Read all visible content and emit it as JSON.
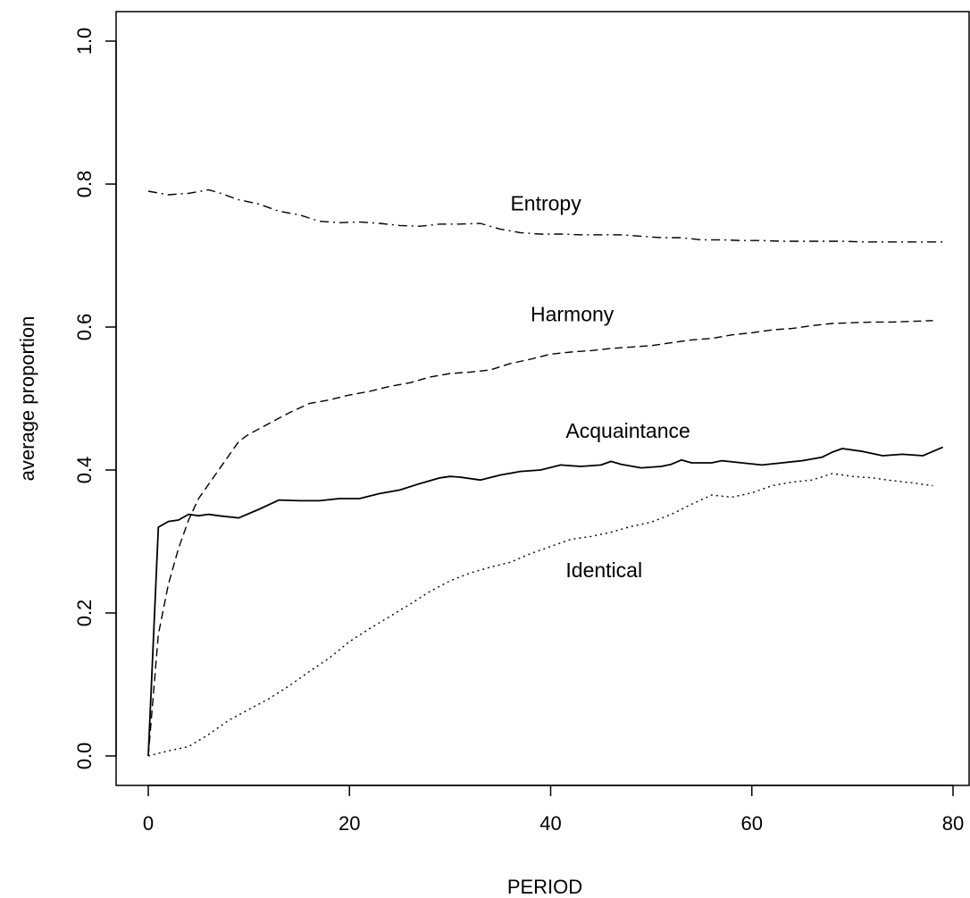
{
  "chart_data": {
    "type": "line",
    "title": "",
    "xlabel": "PERIOD",
    "ylabel": "average proportion",
    "xlim": [
      0,
      80
    ],
    "ylim": [
      0,
      1.0
    ],
    "xticks": [
      "0",
      "20",
      "40",
      "60",
      "80"
    ],
    "yticks": [
      "0.0",
      "0.2",
      "0.4",
      "0.6",
      "0.8",
      "1.0"
    ],
    "grid": false,
    "legend": "none",
    "series": [
      {
        "name": "Entropy",
        "linestyle": "dashdot",
        "x": [
          0,
          2,
          4,
          6,
          7,
          9,
          11,
          13,
          15,
          17,
          19,
          21,
          23,
          25,
          27,
          29,
          31,
          33,
          35,
          37,
          39,
          41,
          43,
          45,
          47,
          49,
          51,
          53,
          55,
          57,
          59,
          61,
          63,
          65,
          67,
          69,
          71,
          73,
          75,
          77,
          79
        ],
        "values": [
          0.79,
          0.785,
          0.787,
          0.792,
          0.788,
          0.778,
          0.772,
          0.762,
          0.757,
          0.748,
          0.746,
          0.747,
          0.745,
          0.742,
          0.741,
          0.744,
          0.744,
          0.745,
          0.737,
          0.732,
          0.73,
          0.73,
          0.729,
          0.729,
          0.729,
          0.727,
          0.725,
          0.725,
          0.722,
          0.722,
          0.721,
          0.721,
          0.72,
          0.72,
          0.72,
          0.72,
          0.719,
          0.719,
          0.719,
          0.719,
          0.719
        ]
      },
      {
        "name": "Harmony",
        "linestyle": "dashed",
        "x": [
          0,
          1,
          2,
          3,
          4,
          5,
          6,
          7,
          8,
          9,
          10,
          12,
          14,
          16,
          18,
          20,
          22,
          24,
          26,
          28,
          30,
          32,
          34,
          36,
          38,
          40,
          42,
          44,
          46,
          48,
          50,
          52,
          54,
          56,
          58,
          60,
          62,
          64,
          66,
          68,
          70,
          72,
          74,
          76,
          78
        ],
        "values": [
          0.0,
          0.17,
          0.24,
          0.29,
          0.33,
          0.36,
          0.38,
          0.4,
          0.42,
          0.44,
          0.45,
          0.465,
          0.48,
          0.493,
          0.498,
          0.505,
          0.51,
          0.517,
          0.522,
          0.53,
          0.535,
          0.537,
          0.54,
          0.549,
          0.555,
          0.562,
          0.565,
          0.567,
          0.57,
          0.572,
          0.574,
          0.578,
          0.582,
          0.584,
          0.589,
          0.592,
          0.596,
          0.598,
          0.602,
          0.605,
          0.606,
          0.607,
          0.607,
          0.608,
          0.609
        ]
      },
      {
        "name": "Acquaintance",
        "linestyle": "solid",
        "x": [
          0,
          1,
          2,
          3,
          4,
          5,
          6,
          7,
          9,
          11,
          13,
          15,
          17,
          19,
          21,
          23,
          25,
          27,
          29,
          30,
          31,
          33,
          35,
          37,
          39,
          41,
          43,
          45,
          46,
          47,
          49,
          51,
          52,
          53,
          54,
          56,
          57,
          59,
          61,
          63,
          65,
          67,
          68,
          69,
          71,
          73,
          75,
          77,
          79
        ],
        "values": [
          0.0,
          0.32,
          0.328,
          0.33,
          0.338,
          0.336,
          0.338,
          0.336,
          0.333,
          0.345,
          0.358,
          0.357,
          0.357,
          0.36,
          0.36,
          0.367,
          0.372,
          0.381,
          0.389,
          0.391,
          0.39,
          0.386,
          0.393,
          0.398,
          0.4,
          0.407,
          0.405,
          0.407,
          0.412,
          0.408,
          0.403,
          0.405,
          0.408,
          0.414,
          0.41,
          0.41,
          0.413,
          0.41,
          0.407,
          0.41,
          0.413,
          0.418,
          0.425,
          0.43,
          0.426,
          0.42,
          0.422,
          0.42,
          0.432
        ]
      },
      {
        "name": "Identical",
        "linestyle": "dotted",
        "x": [
          0,
          2,
          4,
          6,
          8,
          10,
          12,
          14,
          16,
          18,
          20,
          22,
          24,
          26,
          28,
          30,
          32,
          34,
          36,
          38,
          40,
          42,
          44,
          46,
          48,
          50,
          52,
          54,
          56,
          58,
          60,
          62,
          64,
          66,
          68,
          70,
          72,
          74,
          76,
          78
        ],
        "values": [
          0.0,
          0.007,
          0.013,
          0.03,
          0.05,
          0.065,
          0.08,
          0.098,
          0.118,
          0.137,
          0.16,
          0.178,
          0.195,
          0.212,
          0.23,
          0.245,
          0.256,
          0.264,
          0.271,
          0.283,
          0.293,
          0.303,
          0.307,
          0.313,
          0.321,
          0.327,
          0.338,
          0.352,
          0.365,
          0.362,
          0.368,
          0.378,
          0.383,
          0.386,
          0.395,
          0.391,
          0.389,
          0.385,
          0.382,
          0.378
        ]
      }
    ],
    "annotations": [
      {
        "text": "Entropy",
        "x": 36,
        "y": 0.763
      },
      {
        "text": "Harmony",
        "x": 38,
        "y": 0.608
      },
      {
        "text": "Acquaintance",
        "x": 41.5,
        "y": 0.445
      },
      {
        "text": "Identical",
        "x": 41.5,
        "y": 0.25
      }
    ]
  }
}
